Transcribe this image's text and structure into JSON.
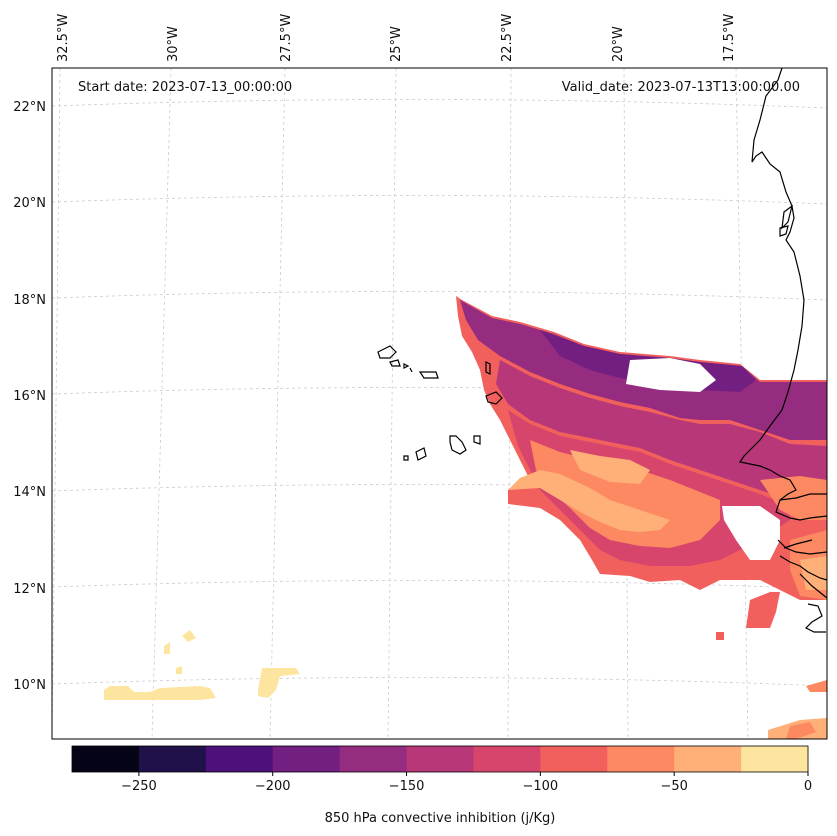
{
  "header": {
    "start_date": "Start date: 2023-07-13_00:00:00",
    "valid_date": "Valid_date: 2023-07-13T13:00:00.00"
  },
  "longitude_labels": [
    "32.5°W",
    "30°W",
    "27.5°W",
    "25°W",
    "22.5°W",
    "20°W",
    "17.5°W"
  ],
  "latitude_labels": [
    "22°N",
    "20°N",
    "18°N",
    "16°N",
    "14°N",
    "12°N",
    "10°N"
  ],
  "colorbar": {
    "title": "850 hPa convective inhibition (j/Kg)",
    "ticks": [
      "−250",
      "−200",
      "−150",
      "−100",
      "−50",
      "0"
    ],
    "levels": [
      -275,
      -250,
      -225,
      -200,
      -175,
      -150,
      -125,
      -100,
      -75,
      -50,
      -25,
      0
    ],
    "colors": [
      "#050416",
      "#20114b",
      "#4e117b",
      "#721f81",
      "#952c80",
      "#b73779",
      "#d8456c",
      "#f1605d",
      "#fc8961",
      "#feb078",
      "#fee59f"
    ]
  },
  "colors": {
    "coastline": "#000000",
    "gridline": "#cccccc"
  }
}
